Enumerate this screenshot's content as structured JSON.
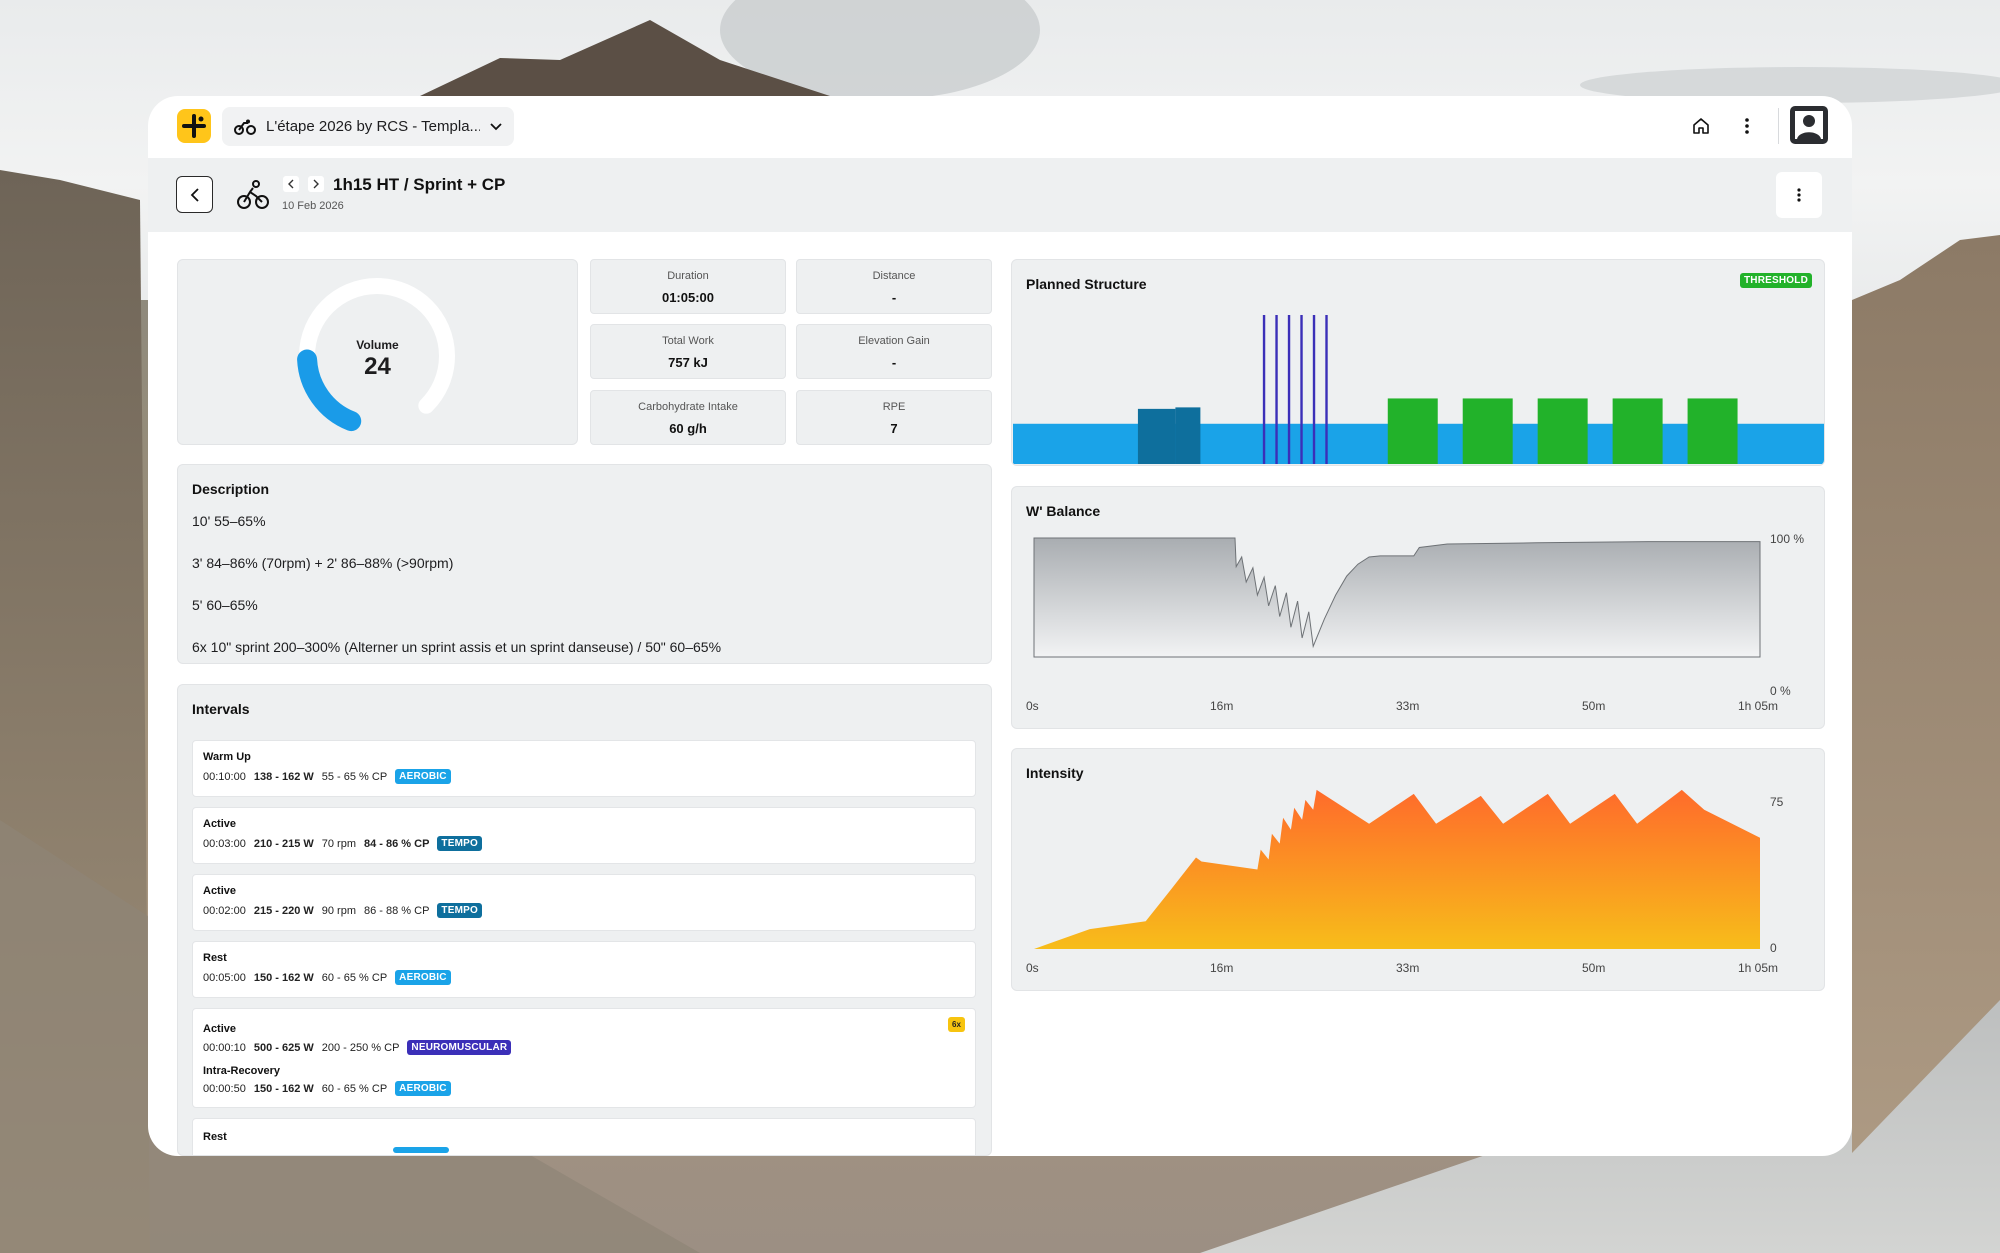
{
  "topbar": {
    "project_label": "L'étape 2026 by RCS - Templa...",
    "icons": [
      "logo-plus-icon",
      "bike-group-icon",
      "chevron-down-icon",
      "home-icon",
      "more-vertical-icon",
      "user-avatar-icon"
    ]
  },
  "header": {
    "title": "1h15 HT / Sprint + CP",
    "date": "10 Feb 2026"
  },
  "volume": {
    "label": "Volume",
    "value": "24"
  },
  "stats": {
    "duration": {
      "label": "Duration",
      "value": "01:05:00"
    },
    "distance": {
      "label": "Distance",
      "value": "-"
    },
    "total_work": {
      "label": "Total Work",
      "value": "757 kJ"
    },
    "elevation_gain": {
      "label": "Elevation Gain",
      "value": "-"
    },
    "carbs": {
      "label": "Carbohydrate Intake",
      "value": "60 g/h"
    },
    "rpe": {
      "label": "RPE",
      "value": "7"
    }
  },
  "description": {
    "title": "Description",
    "lines": [
      "10' 55–65%",
      "3' 84–86% (70rpm) + 2' 86–88% (>90rpm)",
      "5' 60–65%",
      "6x 10\" sprint 200–300% (Alterner un sprint assis et un sprint danseuse) / 50\" 60–65%"
    ]
  },
  "intervals": {
    "title": "Intervals",
    "items": [
      {
        "name": "Warm Up",
        "time": "00:10:00",
        "power": "138 - 162 W",
        "rpm": "",
        "pct": "55 - 65 % CP",
        "zone": "AEROBIC"
      },
      {
        "name": "Active",
        "time": "00:03:00",
        "power": "210 - 215 W",
        "rpm": "70 rpm",
        "pct": "84 - 86 % CP",
        "zone": "TEMPO"
      },
      {
        "name": "Active",
        "time": "00:02:00",
        "power": "215 - 220 W",
        "rpm": "90 rpm",
        "pct": "86 - 88 % CP",
        "zone": "TEMPO"
      },
      {
        "name": "Rest",
        "time": "00:05:00",
        "power": "150 - 162 W",
        "rpm": "",
        "pct": "60 - 65 % CP",
        "zone": "AEROBIC"
      }
    ],
    "repeat": {
      "count": "6x",
      "active": {
        "name": "Active",
        "time": "00:00:10",
        "power": "500 - 625 W",
        "pct": "200 - 250 % CP",
        "zone": "NEUROMUSCULAR"
      },
      "recovery": {
        "name": "Intra-Recovery",
        "time": "00:00:50",
        "power": "150 - 162 W",
        "pct": "60 - 65 % CP",
        "zone": "AEROBIC"
      }
    },
    "last": {
      "name": "Rest"
    }
  },
  "zone_colors": {
    "AEROBIC": "#1aa3e8",
    "TEMPO": "#0e6f9d",
    "NEUROMUSCULAR": "#3b2fb8",
    "THRESHOLD": "#22b22a"
  },
  "planned": {
    "title": "Planned Structure",
    "badge": "THRESHOLD"
  },
  "chart_data": [
    {
      "type": "bar",
      "title": "Planned Structure",
      "segments": [
        {
          "start_min": 0,
          "dur_min": 10,
          "level": 0.27,
          "zone": "AEROBIC"
        },
        {
          "start_min": 10,
          "dur_min": 3,
          "level": 0.37,
          "zone": "TEMPO"
        },
        {
          "start_min": 13,
          "dur_min": 2,
          "level": 0.38,
          "zone": "TEMPO"
        },
        {
          "start_min": 15,
          "dur_min": 5,
          "level": 0.27,
          "zone": "AEROBIC"
        },
        {
          "start_min": 20,
          "dur_min": 0.17,
          "level": 1.0,
          "zone": "NEUROMUSCULAR"
        },
        {
          "start_min": 21,
          "dur_min": 0.17,
          "level": 1.0,
          "zone": "NEUROMUSCULAR"
        },
        {
          "start_min": 22,
          "dur_min": 0.17,
          "level": 1.0,
          "zone": "NEUROMUSCULAR"
        },
        {
          "start_min": 23,
          "dur_min": 0.17,
          "level": 1.0,
          "zone": "NEUROMUSCULAR"
        },
        {
          "start_min": 24,
          "dur_min": 0.17,
          "level": 1.0,
          "zone": "NEUROMUSCULAR"
        },
        {
          "start_min": 25,
          "dur_min": 0.17,
          "level": 1.0,
          "zone": "NEUROMUSCULAR"
        },
        {
          "start_min": 30,
          "dur_min": 4,
          "level": 0.44,
          "zone": "THRESHOLD"
        },
        {
          "start_min": 36,
          "dur_min": 4,
          "level": 0.44,
          "zone": "THRESHOLD"
        },
        {
          "start_min": 42,
          "dur_min": 4,
          "level": 0.44,
          "zone": "THRESHOLD"
        },
        {
          "start_min": 48,
          "dur_min": 4,
          "level": 0.44,
          "zone": "THRESHOLD"
        },
        {
          "start_min": 54,
          "dur_min": 4,
          "level": 0.44,
          "zone": "THRESHOLD"
        }
      ],
      "base_level": 0.27,
      "total_min": 65
    },
    {
      "type": "area",
      "title": "W' Balance",
      "x_ticks": [
        "0s",
        "16m",
        "33m",
        "50m",
        "1h 05m"
      ],
      "y_ticks": [
        "100 %",
        "0 %"
      ],
      "ylim": [
        0,
        100
      ],
      "x": [
        0,
        18,
        18.1,
        18.6,
        19,
        19.6,
        20,
        20.6,
        21,
        21.6,
        22,
        22.6,
        23,
        23.6,
        24,
        24.6,
        25,
        26,
        27,
        28,
        29,
        30,
        31,
        34,
        34.5,
        37,
        45,
        55,
        65
      ],
      "values": [
        100,
        100,
        76,
        84,
        63,
        75,
        52,
        67,
        43,
        60,
        34,
        54,
        25,
        47,
        16,
        38,
        9,
        32,
        52,
        68,
        78,
        84,
        85,
        85,
        92,
        95,
        96,
        97,
        97
      ]
    },
    {
      "type": "area",
      "title": "Intensity",
      "x_ticks": [
        "0s",
        "16m",
        "33m",
        "50m",
        "1h 05m"
      ],
      "y_ticks": [
        "75",
        "0"
      ],
      "ylim": [
        0,
        85
      ],
      "x": [
        0,
        2,
        5,
        10,
        12,
        14.5,
        15,
        20,
        20.3,
        21,
        21.3,
        22,
        22.3,
        23,
        23.3,
        24,
        24.3,
        25,
        25.3,
        30,
        34,
        36,
        40,
        42,
        46,
        48,
        52,
        54,
        58,
        60,
        65
      ],
      "values": [
        0,
        4,
        10,
        14,
        28,
        46,
        44,
        40,
        50,
        45,
        58,
        53,
        66,
        60,
        71,
        65,
        75,
        70,
        80,
        63,
        78,
        63,
        77,
        63,
        78,
        63,
        78,
        63,
        80,
        70,
        56
      ]
    }
  ],
  "wbal": {
    "title": "W' Balance"
  },
  "intensity": {
    "title": "Intensity"
  }
}
